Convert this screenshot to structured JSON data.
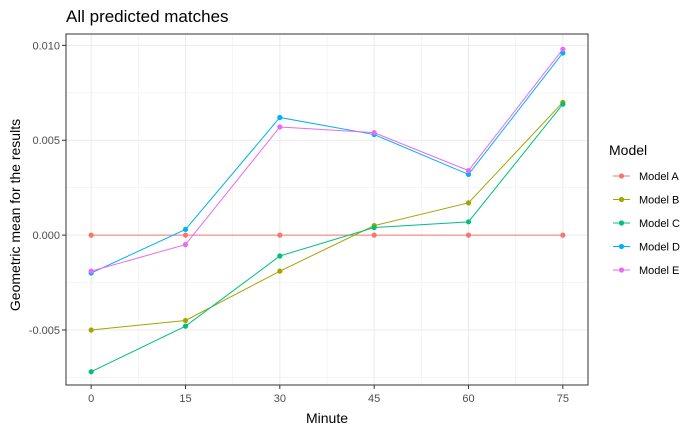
{
  "chart_data": {
    "type": "line",
    "title": "All predicted matches",
    "xlabel": "Minute",
    "ylabel": "Geometric mean for the results",
    "x": [
      0,
      15,
      30,
      45,
      60,
      75
    ],
    "x_ticks": [
      "0",
      "15",
      "30",
      "45",
      "60",
      "75"
    ],
    "y_ticks": [
      -0.005,
      0.0,
      0.005,
      0.01
    ],
    "y_tick_labels": [
      "-0.005",
      "0.000",
      "0.005",
      "0.010"
    ],
    "xlim": [
      -4,
      79
    ],
    "ylim": [
      -0.0079,
      0.0106
    ],
    "grid": true,
    "legend": {
      "title": "Model",
      "position": "right"
    },
    "series": [
      {
        "name": "Model A",
        "color": "#F8766D",
        "values": [
          0.0,
          0.0,
          0.0,
          0.0,
          0.0,
          0.0
        ]
      },
      {
        "name": "Model B",
        "color": "#A3A500",
        "values": [
          -0.005,
          -0.0045,
          -0.0019,
          0.0005,
          0.0017,
          0.007
        ]
      },
      {
        "name": "Model C",
        "color": "#00BF7D",
        "values": [
          -0.0072,
          -0.0048,
          -0.0011,
          0.0004,
          0.0007,
          0.0069
        ]
      },
      {
        "name": "Model D",
        "color": "#00B0F6",
        "values": [
          -0.002,
          0.0003,
          0.0062,
          0.0053,
          0.0032,
          0.0096
        ]
      },
      {
        "name": "Model E",
        "color": "#E76BF3",
        "values": [
          -0.0019,
          -0.0005,
          0.0057,
          0.0054,
          0.0034,
          0.0098
        ]
      }
    ]
  }
}
